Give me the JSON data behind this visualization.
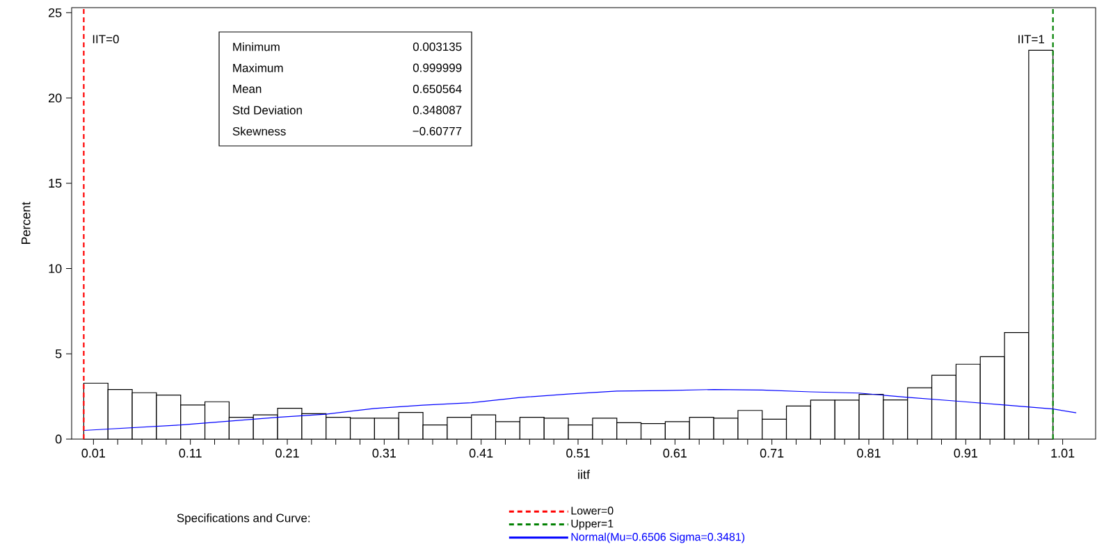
{
  "chart_data": {
    "type": "histogram",
    "xlabel": "iitf",
    "ylabel": "Percent",
    "legend_title": "Specifications and Curve:",
    "bins": [
      0,
      0.025,
      0.05,
      0.075,
      0.1,
      0.125,
      0.15,
      0.175,
      0.2,
      0.225,
      0.25,
      0.275,
      0.3,
      0.325,
      0.35,
      0.375,
      0.4,
      0.425,
      0.45,
      0.475,
      0.5,
      0.525,
      0.55,
      0.575,
      0.6,
      0.625,
      0.65,
      0.675,
      0.7,
      0.725,
      0.75,
      0.775,
      0.8,
      0.825,
      0.85,
      0.875,
      0.9,
      0.925,
      0.95,
      0.975,
      1.0
    ],
    "series": [
      {
        "type": "histogram",
        "color": "#ffffff",
        "values": [
          3.28,
          2.91,
          2.72,
          2.58,
          2.0,
          2.19,
          1.28,
          1.42,
          1.81,
          1.49,
          1.28,
          1.23,
          1.23,
          1.56,
          0.83,
          1.28,
          1.42,
          1.02,
          1.28,
          1.23,
          0.83,
          1.23,
          0.96,
          0.91,
          1.02,
          1.28,
          1.23,
          1.68,
          1.17,
          1.94,
          2.29,
          2.29,
          2.62,
          2.3,
          3.01,
          3.74,
          4.39,
          4.83,
          6.25,
          22.8
        ]
      },
      {
        "type": "line",
        "name": "Normal(Mu=0.6506 Sigma=0.3481)",
        "color": "#0000ff",
        "x": [
          0,
          0.1,
          0.2,
          0.25,
          0.3,
          0.35,
          0.4,
          0.45,
          0.5,
          0.55,
          0.6,
          0.65,
          0.7,
          0.75,
          0.8,
          0.85,
          0.9,
          0.95,
          1.0,
          1.024
        ],
        "values": [
          0.51,
          0.83,
          1.28,
          1.46,
          1.8,
          1.99,
          2.13,
          2.44,
          2.64,
          2.82,
          2.85,
          2.91,
          2.88,
          2.77,
          2.7,
          2.45,
          2.23,
          2.0,
          1.77,
          1.54
        ]
      }
    ],
    "ref_lines": [
      {
        "axis": "x",
        "value": 0,
        "label": "IIT=0",
        "color": "#ff0000",
        "line_style": "dashed"
      },
      {
        "axis": "x",
        "value": 1,
        "label": "IIT=1",
        "color": "#008000",
        "line_style": "dashed"
      }
    ],
    "annotations": [
      "Minimum",
      "0.003135",
      "Maximum",
      "0.999999",
      "Mean",
      "0.650564",
      "Std Deviation",
      "0.348087",
      "Skewness",
      "−0.60777",
      "Lower=0",
      "Upper=1"
    ],
    "xlim": [
      -0.0125,
      1.044
    ],
    "ylim": [
      0,
      25.3
    ],
    "xticks": [
      0.01,
      {
        "value": 0.035,
        "label": null
      },
      {
        "value": 0.06,
        "label": null
      },
      {
        "value": 0.085,
        "label": null
      },
      0.11,
      {
        "value": 0.135,
        "label": null
      },
      {
        "value": 0.16,
        "label": null
      },
      {
        "value": 0.185,
        "label": null
      },
      0.21,
      {
        "value": 0.235,
        "label": null
      },
      {
        "value": 0.26,
        "label": null
      },
      {
        "value": 0.285,
        "label": null
      },
      0.31,
      {
        "value": 0.335,
        "label": null
      },
      {
        "value": 0.36,
        "label": null
      },
      {
        "value": 0.385,
        "label": null
      },
      0.41,
      {
        "value": 0.435,
        "label": null
      },
      {
        "value": 0.46,
        "label": null
      },
      {
        "value": 0.485,
        "label": null
      },
      0.51,
      {
        "value": 0.535,
        "label": null
      },
      {
        "value": 0.56,
        "label": null
      },
      {
        "value": 0.585,
        "label": null
      },
      0.61,
      {
        "value": 0.635,
        "label": null
      },
      {
        "value": 0.66,
        "label": null
      },
      {
        "value": 0.685,
        "label": null
      },
      0.71,
      {
        "value": 0.735,
        "label": null
      },
      {
        "value": 0.76,
        "label": null
      },
      {
        "value": 0.785,
        "label": null
      },
      0.81,
      {
        "value": 0.835,
        "label": null
      },
      {
        "value": 0.86,
        "label": null
      },
      {
        "value": 0.885,
        "label": null
      },
      0.91,
      {
        "value": 0.935,
        "label": null
      },
      {
        "value": 0.96,
        "label": null
      },
      {
        "value": 0.985,
        "label": null
      },
      1.01
    ],
    "yticks": [
      0,
      5,
      10,
      15,
      20,
      25
    ],
    "legend": "bottom"
  }
}
